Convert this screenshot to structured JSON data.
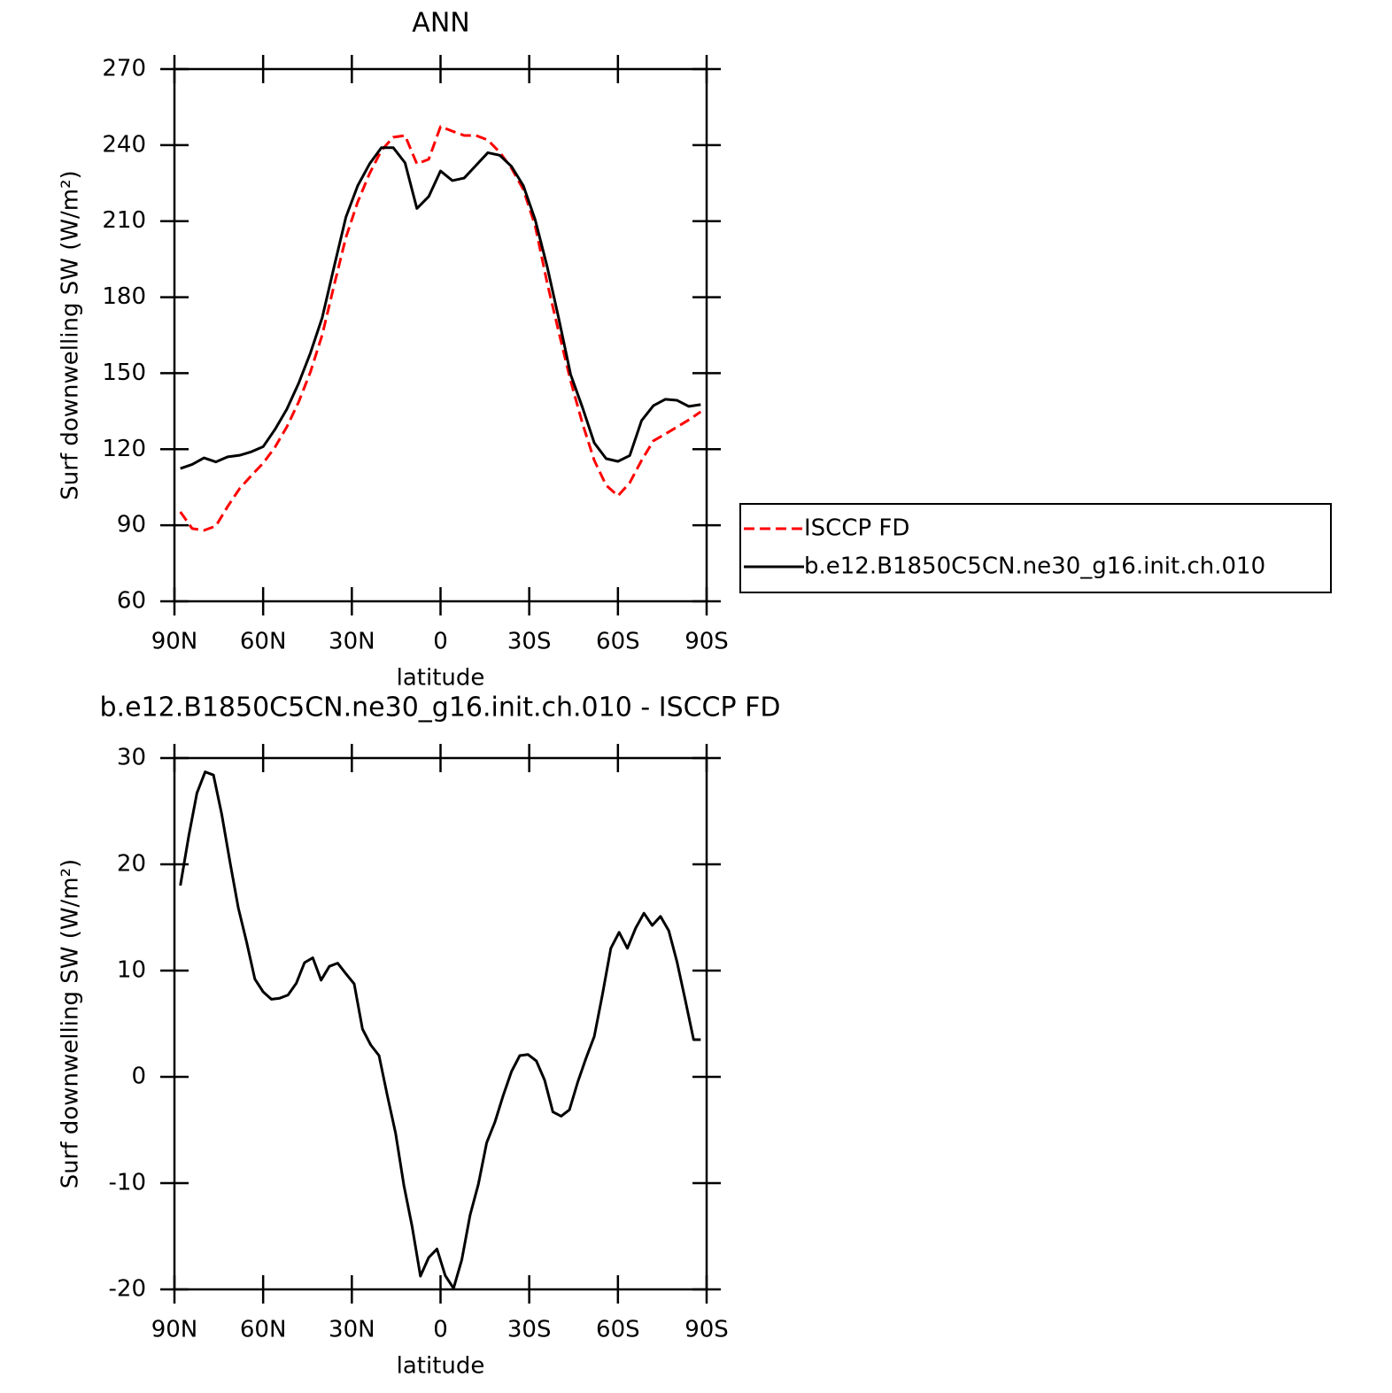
{
  "chart_data": [
    {
      "type": "line",
      "title": "ANN",
      "xlabel": "latitude",
      "ylabel": "Surf downwelling SW (W/m²)",
      "xlim": [
        90,
        -90
      ],
      "xticks": [
        {
          "value": 90,
          "label": "90N"
        },
        {
          "value": 60,
          "label": "60N"
        },
        {
          "value": 30,
          "label": "30N"
        },
        0,
        {
          "value": -30,
          "label": "30S"
        },
        {
          "value": -60,
          "label": "60S"
        },
        {
          "value": -90,
          "label": "90S"
        }
      ],
      "ylim": [
        60,
        270
      ],
      "yticks": [
        60,
        90,
        120,
        150,
        180,
        210,
        240,
        270
      ],
      "legend": "right",
      "x": [
        88,
        84,
        80,
        76,
        72,
        68,
        64,
        60,
        56,
        52,
        48,
        44,
        40,
        36,
        32,
        28,
        24,
        20,
        16,
        12,
        8,
        4,
        0,
        -4,
        -8,
        -12,
        -16,
        -20,
        -24,
        -28,
        -32,
        -36,
        -40,
        -44,
        -48,
        -52,
        -56,
        -60,
        -64,
        -68,
        -72,
        -76,
        -80,
        -84,
        -88
      ],
      "series": [
        {
          "name": "ISCCP FD",
          "color": "#ff0000",
          "linestyle": "dashed",
          "values": [
            95.3,
            88.7,
            88,
            89.7,
            97.4,
            104.4,
            109.6,
            114.5,
            120.8,
            128.8,
            138.6,
            150.5,
            165.2,
            184.7,
            203.6,
            217.6,
            228.8,
            237.9,
            243.1,
            243.8,
            232.6,
            234.4,
            247.3,
            245.5,
            243.8,
            243.8,
            242,
            237.2,
            230.9,
            222.5,
            208.2,
            186,
            166.2,
            147,
            130.2,
            115.6,
            105.8,
            101.6,
            106.8,
            115.6,
            123.3,
            126,
            128.8,
            131.6,
            134.8
          ]
        },
        {
          "name": "b.e12.B1850C5CN.ne30_g16.init.ch.010",
          "color": "#000000",
          "linestyle": "solid",
          "values": [
            112.4,
            114,
            116.6,
            115,
            117,
            117.6,
            119,
            121,
            127.8,
            135.8,
            146,
            158,
            172,
            192,
            211.6,
            224,
            232.6,
            239,
            239,
            233,
            215,
            219.7,
            229.8,
            226,
            227,
            232,
            237,
            236,
            231.6,
            224,
            210.6,
            192.4,
            171.5,
            149.5,
            136.5,
            122.5,
            116.3,
            115.2,
            117.5,
            131.3,
            137.2,
            139.7,
            139.3,
            136.9,
            137.6
          ]
        }
      ]
    },
    {
      "type": "line",
      "title": "b.e12.B1850C5CN.ne30_g16.init.ch.010 - ISCCP FD",
      "xlabel": "latitude",
      "ylabel": "Surf downwelling SW (W/m²)",
      "xlim": [
        90,
        -90
      ],
      "xticks": [
        {
          "value": 90,
          "label": "90N"
        },
        {
          "value": 60,
          "label": "60N"
        },
        {
          "value": 30,
          "label": "30N"
        },
        0,
        {
          "value": -30,
          "label": "30S"
        },
        {
          "value": -60,
          "label": "60S"
        },
        {
          "value": -90,
          "label": "90S"
        }
      ],
      "ylim": [
        -20,
        30
      ],
      "yticks": [
        -20,
        -10,
        0,
        10,
        20,
        30
      ],
      "x": [
        88,
        85.2,
        82.4,
        79.6,
        76.8,
        74,
        71.2,
        68.4,
        65.6,
        62.8,
        60,
        57.2,
        54.4,
        51.6,
        48.8,
        46,
        43.2,
        40.4,
        37.6,
        34.8,
        32,
        29.2,
        26.4,
        23.6,
        20.8,
        18,
        15.2,
        12.4,
        9.6,
        6.8,
        4,
        1.2,
        -1.6,
        -4.4,
        -7.2,
        -10,
        -12.8,
        -15.6,
        -18.4,
        -21.2,
        -24,
        -26.8,
        -29.6,
        -32.4,
        -35.2,
        -38,
        -40.8,
        -43.6,
        -46.4,
        -49.2,
        -52,
        -54.8,
        -57.6,
        -60.4,
        -63.2,
        -66,
        -68.8,
        -71.6,
        -74.4,
        -77.2,
        -80,
        -82.8,
        -85.6,
        -88
      ],
      "series": [
        {
          "color": "#000000",
          "linestyle": "solid",
          "values": [
            18,
            22.6,
            26.7,
            28.7,
            28.4,
            24.7,
            20.2,
            15.9,
            12.7,
            9.2,
            8,
            7.3,
            7.4,
            7.7,
            8.8,
            10.75,
            11.2,
            9.1,
            10.4,
            10.7,
            9.7,
            8.75,
            4.5,
            3,
            2,
            -1.75,
            -5.3,
            -10.2,
            -14.1,
            -18.75,
            -17,
            -16.2,
            -18.7,
            -19.9,
            -17.2,
            -13,
            -10.1,
            -6.2,
            -4.25,
            -1.75,
            0.5,
            2,
            2.1,
            1.5,
            -0.3,
            -3.3,
            -3.7,
            -3.1,
            -0.5,
            1.75,
            3.8,
            7.8,
            12.1,
            13.6,
            12.1,
            14,
            15.4,
            14.25,
            15.1,
            13.75,
            10.8,
            7.2,
            3.5,
            3.5
          ]
        }
      ]
    }
  ]
}
